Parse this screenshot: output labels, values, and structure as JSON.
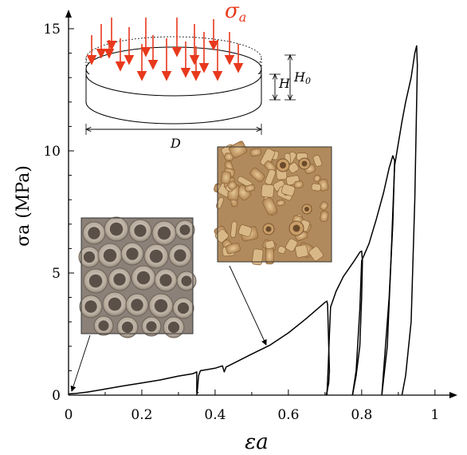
{
  "chart_data": {
    "type": "line",
    "title": "",
    "xlabel": "εa",
    "ylabel": "σa (MPa)",
    "xlim": [
      0,
      1.05
    ],
    "ylim": [
      0,
      15.5
    ],
    "xticks": [
      0,
      0.2,
      0.4,
      0.6,
      0.8,
      1
    ],
    "xtick_labels": [
      "0",
      "0.2",
      "0.4",
      "0.6",
      "0.8",
      "1"
    ],
    "yticks": [
      0,
      5,
      10,
      15
    ],
    "ytick_labels": [
      "0",
      "5",
      "10",
      "15"
    ],
    "grid": false,
    "series": [
      {
        "segments": [
          [
            [
              0,
              0.05
            ],
            [
              0.02,
              0.07
            ],
            [
              0.05,
              0.12
            ],
            [
              0.1,
              0.25
            ],
            [
              0.15,
              0.38
            ],
            [
              0.2,
              0.5
            ],
            [
              0.25,
              0.62
            ],
            [
              0.3,
              0.78
            ],
            [
              0.34,
              0.88
            ],
            [
              0.35,
              0.95
            ],
            [
              0.35,
              0.1
            ],
            [
              0.355,
              0.1
            ]
          ],
          [
            [
              0.35,
              0
            ],
            [
              0.352,
              0.25
            ],
            [
              0.355,
              0.8
            ],
            [
              0.36,
              1.0
            ],
            [
              0.4,
              1.1
            ],
            [
              0.42,
              1.2
            ],
            [
              0.425,
              0.95
            ],
            [
              0.43,
              1.15
            ],
            [
              0.45,
              1.3
            ],
            [
              0.5,
              1.68
            ],
            [
              0.55,
              2.05
            ],
            [
              0.6,
              2.55
            ],
            [
              0.65,
              3.15
            ],
            [
              0.7,
              3.8
            ],
            [
              0.705,
              3.85
            ],
            [
              0.707,
              3.7
            ],
            [
              0.71,
              2.0
            ],
            [
              0.712,
              1.0
            ],
            [
              0.71,
              0.5
            ],
            [
              0.705,
              0.1
            ],
            [
              0.703,
              0
            ]
          ],
          [
            [
              0.705,
              0
            ],
            [
              0.708,
              0.9
            ],
            [
              0.712,
              2.5
            ],
            [
              0.715,
              3.6
            ],
            [
              0.73,
              4.25
            ],
            [
              0.75,
              4.85
            ],
            [
              0.78,
              5.5
            ],
            [
              0.795,
              5.85
            ],
            [
              0.8,
              5.9
            ],
            [
              0.802,
              5.5
            ],
            [
              0.8,
              4.0
            ],
            [
              0.795,
              2.0
            ],
            [
              0.785,
              0.8
            ],
            [
              0.775,
              0
            ]
          ],
          [
            [
              0.775,
              0
            ],
            [
              0.785,
              1.0
            ],
            [
              0.795,
              3.5
            ],
            [
              0.8,
              5.5
            ],
            [
              0.82,
              6.2
            ],
            [
              0.84,
              7.2
            ],
            [
              0.86,
              8.3
            ],
            [
              0.875,
              9.3
            ],
            [
              0.885,
              9.8
            ],
            [
              0.89,
              9.6
            ],
            [
              0.885,
              7.0
            ],
            [
              0.875,
              4.0
            ],
            [
              0.865,
              2.0
            ],
            [
              0.855,
              0
            ]
          ],
          [
            [
              0.855,
              0
            ],
            [
              0.87,
              2.0
            ],
            [
              0.88,
              5.5
            ],
            [
              0.885,
              7.5
            ],
            [
              0.89,
              9.4
            ],
            [
              0.9,
              10.3
            ],
            [
              0.91,
              11.2
            ],
            [
              0.92,
              12.0
            ],
            [
              0.935,
              13.0
            ],
            [
              0.945,
              14.0
            ],
            [
              0.95,
              14.3
            ],
            [
              0.952,
              13.5
            ],
            [
              0.945,
              8.0
            ],
            [
              0.935,
              3.0
            ],
            [
              0.92,
              0.8
            ],
            [
              0.91,
              0
            ]
          ]
        ]
      }
    ]
  },
  "inset_diagram": {
    "load_label_sigma": "σ",
    "load_label_sub": "a",
    "H_label": "H",
    "H0_label": "H",
    "H0_sub": "0",
    "D_label": "D",
    "load_color": "#e8391d"
  },
  "photos": {
    "left_photo": "intact ceramic ring packing",
    "right_photo": "crushed ceramic ring fragments"
  }
}
